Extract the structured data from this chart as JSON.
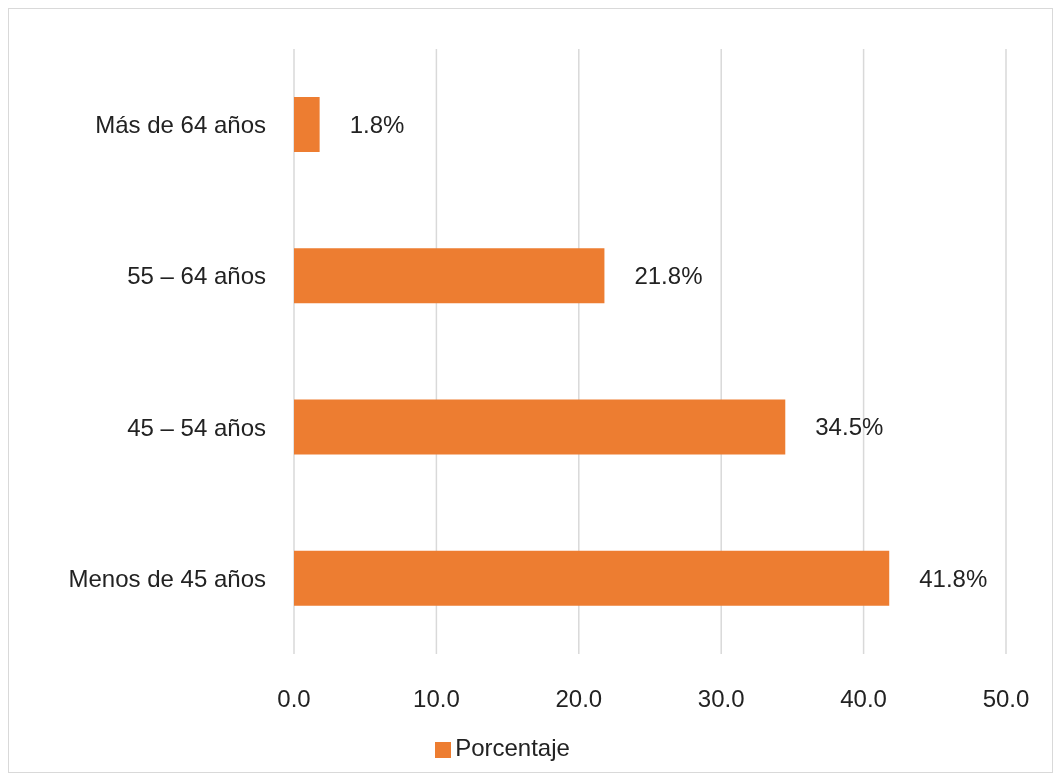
{
  "chart_data": {
    "type": "bar",
    "orientation": "horizontal",
    "categories": [
      "Más de 64 años",
      "55 – 64 años",
      "45 – 54 años",
      "Menos de 45 años"
    ],
    "series": [
      {
        "name": "Porcentaje",
        "color": "#ed7d31",
        "values": [
          1.8,
          21.8,
          34.5,
          41.8
        ],
        "value_labels": [
          "1.8%",
          "21.8%",
          "34.5%",
          "41.8%"
        ]
      }
    ],
    "xlim": [
      0,
      50
    ],
    "xticks": [
      {
        "value": 0,
        "label": "0.0"
      },
      {
        "value": 10,
        "label": "10.0"
      },
      {
        "value": 20,
        "label": "20.0"
      },
      {
        "value": 30,
        "label": "30.0"
      },
      {
        "value": 40,
        "label": "40.0"
      },
      {
        "value": 50,
        "label": "50.0"
      }
    ],
    "grid": "x",
    "legend": "bottom"
  }
}
